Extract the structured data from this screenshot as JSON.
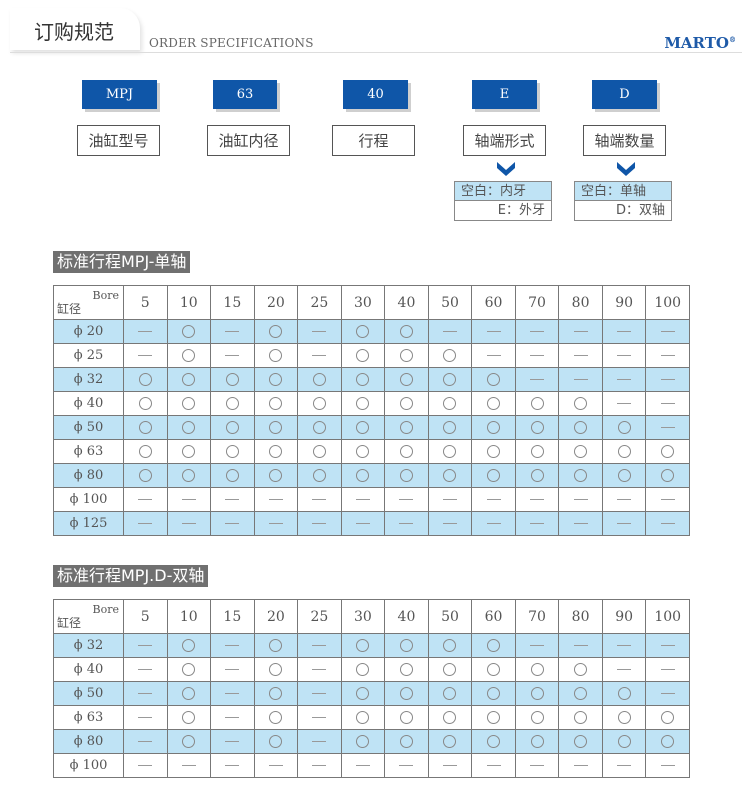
{
  "header": {
    "title": "订购规范",
    "subtitle": "ORDER SPECIFICATIONS",
    "brand": "MARTO",
    "brand_mark": "®"
  },
  "order_code": [
    {
      "code": "MPJ",
      "label": "油缸型号"
    },
    {
      "code": "63",
      "label": "油缸内径"
    },
    {
      "code": "40",
      "label": "行程"
    },
    {
      "code": "E",
      "label": "轴端形式",
      "options": [
        "空白：内牙",
        "E：外牙"
      ]
    },
    {
      "code": "D",
      "label": "轴端数量",
      "options": [
        "空白：单轴",
        "D：双轴"
      ]
    }
  ],
  "colors": {
    "accent": "#0f56a8",
    "row_highlight": "#bfe3f5",
    "section_bg": "#707070"
  },
  "tables": [
    {
      "title": "标准行程MPJ-单轴",
      "corner_top": "Bore",
      "corner_bottom": "缸径",
      "strokes": [
        "5",
        "10",
        "15",
        "20",
        "25",
        "30",
        "40",
        "50",
        "60",
        "70",
        "80",
        "90",
        "100"
      ],
      "rows": [
        {
          "bore": "ϕ 20",
          "marks": "-o-o-oo------"
        },
        {
          "bore": "ϕ 25",
          "marks": "-o-o-ooo-----"
        },
        {
          "bore": "ϕ 32",
          "marks": "ooooooooo----"
        },
        {
          "bore": "ϕ 40",
          "marks": "ooooooooooo--"
        },
        {
          "bore": "ϕ 50",
          "marks": "oooooooooooo-"
        },
        {
          "bore": "ϕ 63",
          "marks": "ooooooooooooo"
        },
        {
          "bore": "ϕ 80",
          "marks": "ooooooooooooo"
        },
        {
          "bore": "ϕ 100",
          "marks": "-------------"
        },
        {
          "bore": "ϕ 125",
          "marks": "-------------"
        }
      ]
    },
    {
      "title": "标准行程MPJ.D-双轴",
      "corner_top": "Bore",
      "corner_bottom": "缸径",
      "strokes": [
        "5",
        "10",
        "15",
        "20",
        "25",
        "30",
        "40",
        "50",
        "60",
        "70",
        "80",
        "90",
        "100"
      ],
      "rows": [
        {
          "bore": "ϕ 32",
          "marks": "-o-o-oooo----"
        },
        {
          "bore": "ϕ 40",
          "marks": "-o-o-oooooo--"
        },
        {
          "bore": "ϕ 50",
          "marks": "-o-o-ooooooo-"
        },
        {
          "bore": "ϕ 63",
          "marks": "-o-o-oooooooo"
        },
        {
          "bore": "ϕ 80",
          "marks": "-o-o-oooooooo"
        },
        {
          "bore": "ϕ 100",
          "marks": "-------------"
        }
      ]
    }
  ]
}
